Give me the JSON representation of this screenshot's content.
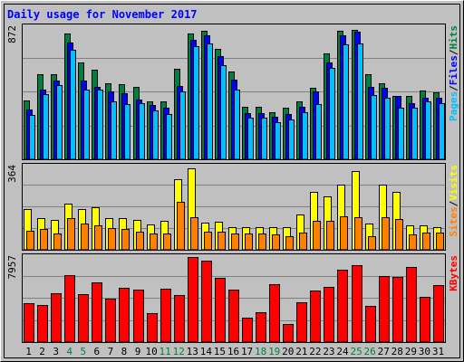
{
  "chart_data": {
    "type": "bar",
    "title": "Daily usage for November 2017",
    "categories": [
      "1",
      "2",
      "3",
      "4",
      "5",
      "6",
      "7",
      "8",
      "9",
      "10",
      "11",
      "12",
      "13",
      "14",
      "15",
      "16",
      "17",
      "18",
      "19",
      "20",
      "21",
      "22",
      "23",
      "24",
      "25",
      "26",
      "27",
      "28",
      "29",
      "30",
      "31"
    ],
    "weekend_days": [
      "4",
      "5",
      "11",
      "12",
      "18",
      "19",
      "25",
      "26"
    ],
    "panels": [
      {
        "id": "hits",
        "max_label": "872",
        "ymax": 872,
        "axis_labels": [
          {
            "text": "Pages",
            "color": "#00c0ff"
          },
          {
            "text": "Files",
            "color": "#0000ff"
          },
          {
            "text": "Hits",
            "color": "#008040"
          }
        ],
        "series": [
          {
            "name": "Hits",
            "color": "#008040",
            "values": [
              390,
              560,
              560,
              830,
              640,
              590,
              502,
              498,
              478,
              380,
              380,
              600,
              832,
              846,
              728,
              578,
              344,
              344,
              310,
              340,
              380,
              470,
              696,
              848,
              854,
              560,
              500,
              420,
              420,
              456,
              444
            ]
          },
          {
            "name": "Files",
            "color": "#0000ff",
            "values": [
              330,
              460,
              520,
              770,
              520,
              480,
              445,
              435,
              394,
              360,
              340,
              484,
              790,
              820,
              680,
              523,
              305,
              305,
              280,
              300,
              345,
              450,
              640,
              818,
              845,
              480,
              470,
              420,
              370,
              405,
              405
            ]
          },
          {
            "name": "Pages",
            "color": "#00c0ff",
            "values": [
              290,
              430,
              490,
              720,
              460,
              460,
              384,
              366,
              370,
              320,
              300,
              447,
              749,
              765,
              620,
              460,
              274,
              274,
              243,
              265,
              310,
              366,
              604,
              760,
              766,
              427,
              408,
              342,
              342,
              380,
              371
            ]
          }
        ]
      },
      {
        "id": "sites",
        "max_label": "364",
        "ymax": 364,
        "axis_labels": [
          {
            "text": "Sites",
            "color": "#ff8000"
          },
          {
            "text": "Visits",
            "color": "#ffff00"
          }
        ],
        "series": [
          {
            "name": "Visits",
            "color": "#ffff00",
            "values": [
              180,
              140,
              130,
              200,
              180,
              184,
              140,
              140,
              130,
              110,
              126,
              308,
              356,
              120,
              122,
              100,
              98,
              100,
              100,
              100,
              154,
              255,
              235,
              284,
              345,
              114,
              284,
              254,
              108,
              108,
              100
            ]
          },
          {
            "name": "Sites",
            "color": "#ff8000",
            "values": [
              84,
              90,
              70,
              140,
              115,
              107,
              96,
              90,
              80,
              70,
              70,
              210,
              141,
              81,
              81,
              70,
              70,
              70,
              68,
              60,
              76,
              126,
              126,
              147,
              142,
              60,
              142,
              133,
              68,
              76,
              76
            ]
          }
        ]
      },
      {
        "id": "kbytes",
        "max_label": "7957",
        "ymax": 7957,
        "axis_labels": [
          {
            "text": "KBytes",
            "color": "#ff0000"
          }
        ],
        "series": [
          {
            "name": "KBytes",
            "color": "#ff0000",
            "values": [
              3600,
              3500,
              4600,
              6300,
              4500,
              5600,
              4100,
              5100,
              4900,
              2700,
              5000,
              4400,
              7957,
              7600,
              6000,
              4900,
              2300,
              2800,
              5400,
              1700,
              3700,
              4800,
              5200,
              6800,
              7200,
              3400,
              6200,
              6100,
              7000,
              4200,
              5300
            ]
          }
        ]
      }
    ]
  }
}
